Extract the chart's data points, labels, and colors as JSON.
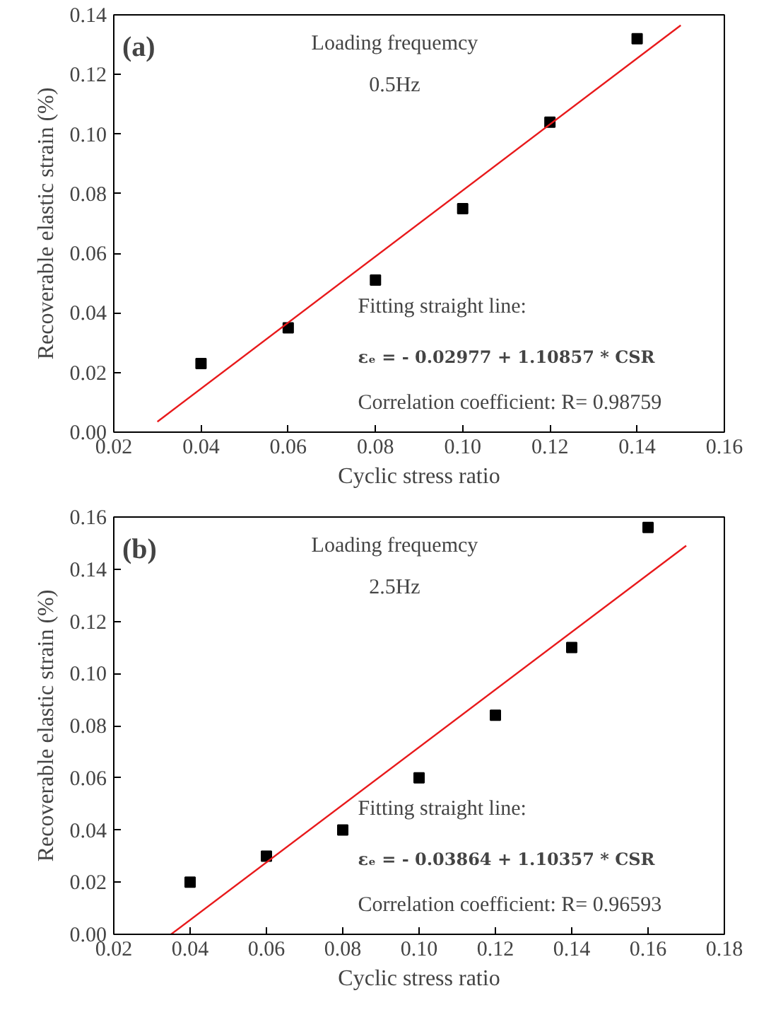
{
  "chart_data": [
    {
      "type": "scatter",
      "title": "(a)",
      "xlabel": "Cyclic stress ratio",
      "ylabel": "Recoverable elastic strain (%)",
      "annotations": [
        "Loading frequemcy",
        "0.5Hz",
        "Fitting straight line:",
        "εₑ = - 0.02977 + 1.10857 * CSR",
        "Correlation coefficient:  R= 0.98759"
      ],
      "series": [
        {
          "color": "#000000",
          "marker": "square",
          "x": [
            0.04,
            0.06,
            0.08,
            0.1,
            0.12,
            0.14
          ],
          "values": [
            0.023,
            0.035,
            0.051,
            0.075,
            0.104,
            0.132
          ]
        },
        {
          "type": "line",
          "color": "#e8191b",
          "marker": "none",
          "x": [
            0.03,
            0.15
          ],
          "values": [
            0.0035,
            0.1365
          ]
        }
      ],
      "xlim": [
        0.02,
        0.16
      ],
      "xticks": [
        {
          "value": 0.02,
          "label": "0.02"
        },
        {
          "value": 0.04,
          "label": "0.04"
        },
        {
          "value": 0.06,
          "label": "0.06"
        },
        {
          "value": 0.08,
          "label": "0.08"
        },
        {
          "value": 0.1,
          "label": "0.10"
        },
        {
          "value": 0.12,
          "label": "0.12"
        },
        {
          "value": 0.14,
          "label": "0.14"
        },
        {
          "value": 0.16,
          "label": "0.16"
        }
      ],
      "ylim": [
        0,
        0.14
      ],
      "yticks": [
        {
          "value": 0,
          "label": "0.00"
        },
        {
          "value": 0.02,
          "label": "0.02"
        },
        {
          "value": 0.04,
          "label": "0.04"
        },
        {
          "value": 0.06,
          "label": "0.06"
        },
        {
          "value": 0.08,
          "label": "0.08"
        },
        {
          "value": 0.1,
          "label": "0.10"
        },
        {
          "value": 0.12,
          "label": "0.12"
        },
        {
          "value": 0.14,
          "label": "0.14"
        }
      ],
      "grid": false
    },
    {
      "type": "scatter",
      "title": "(b)",
      "xlabel": "Cyclic stress ratio",
      "ylabel": "Recoverable elastic strain (%)",
      "annotations": [
        "Loading frequemcy",
        "2.5Hz",
        "Fitting straight line:",
        "εₑ = - 0.03864 + 1.10357 * CSR",
        "Correlation coefficient: R= 0.96593"
      ],
      "series": [
        {
          "color": "#000000",
          "marker": "square",
          "x": [
            0.04,
            0.06,
            0.08,
            0.1,
            0.12,
            0.14,
            0.16
          ],
          "values": [
            0.02,
            0.03,
            0.04,
            0.06,
            0.084,
            0.11,
            0.156
          ]
        },
        {
          "type": "line",
          "color": "#e8191b",
          "marker": "none",
          "x": [
            0.035,
            0.17
          ],
          "values": [
            0.0,
            0.149
          ]
        }
      ],
      "xlim": [
        0.02,
        0.18
      ],
      "xticks": [
        {
          "value": 0.02,
          "label": "0.02"
        },
        {
          "value": 0.04,
          "label": "0.04"
        },
        {
          "value": 0.06,
          "label": "0.06"
        },
        {
          "value": 0.08,
          "label": "0.08"
        },
        {
          "value": 0.1,
          "label": "0.10"
        },
        {
          "value": 0.12,
          "label": "0.12"
        },
        {
          "value": 0.14,
          "label": "0.14"
        },
        {
          "value": 0.16,
          "label": "0.16"
        },
        {
          "value": 0.18,
          "label": "0.18"
        }
      ],
      "ylim": [
        0,
        0.16
      ],
      "yticks": [
        {
          "value": 0,
          "label": "0.00"
        },
        {
          "value": 0.02,
          "label": "0.02"
        },
        {
          "value": 0.04,
          "label": "0.04"
        },
        {
          "value": 0.06,
          "label": "0.06"
        },
        {
          "value": 0.08,
          "label": "0.08"
        },
        {
          "value": 0.1,
          "label": "0.10"
        },
        {
          "value": 0.12,
          "label": "0.12"
        },
        {
          "value": 0.14,
          "label": "0.14"
        },
        {
          "value": 0.16,
          "label": "0.16"
        }
      ],
      "grid": false
    }
  ]
}
